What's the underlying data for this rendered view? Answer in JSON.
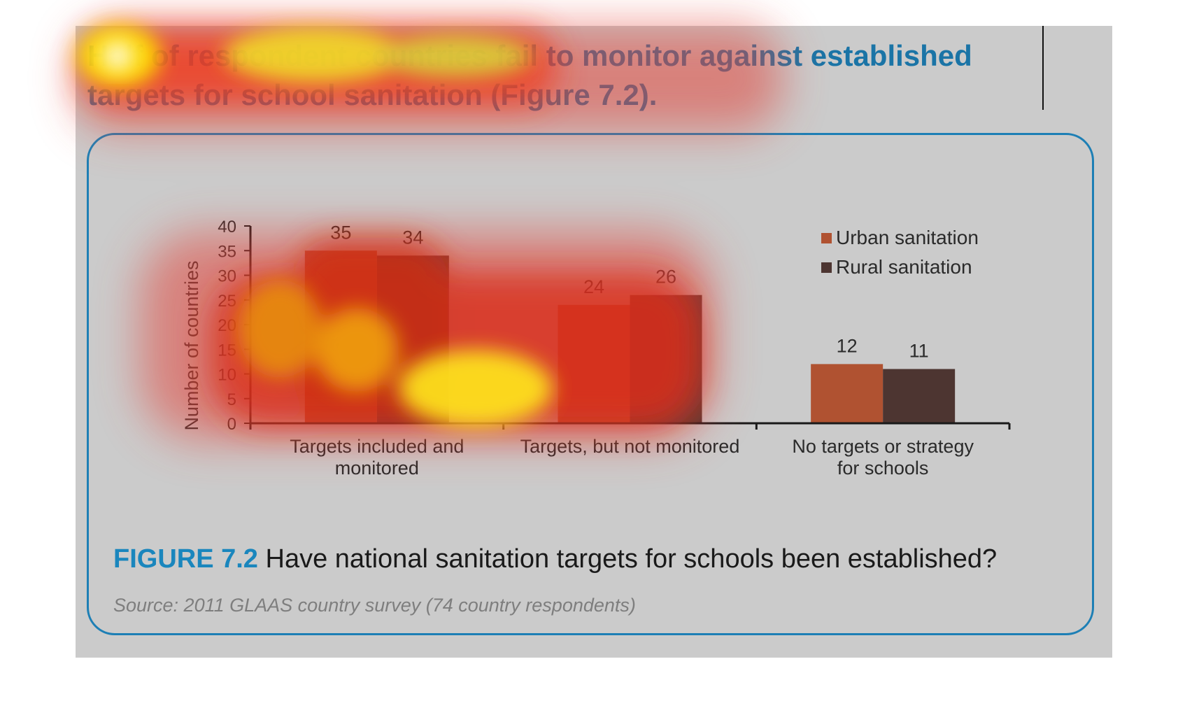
{
  "headline": "Half of respondent countries fail to monitor against established targets for school sanitation (Figure 7.2).",
  "caption": {
    "figure_label": "FIGURE 7.2",
    "text": " Have national sanitation targets for schools been established?"
  },
  "source": "Source: 2011 GLAAS country survey (74 country respondents)",
  "colors": {
    "panel": "#cbcbcb",
    "accent_blue": "#1a74a6",
    "urban": "#b05231",
    "rural": "#4d3531"
  },
  "chart_data": {
    "type": "bar",
    "categories": [
      [
        "Targets included and",
        "monitored"
      ],
      [
        "Targets, but not monitored"
      ],
      [
        "No targets or strategy",
        "for schools"
      ]
    ],
    "series": [
      {
        "name": "Urban sanitation",
        "values": [
          35,
          24,
          12
        ],
        "color": "#b05231"
      },
      {
        "name": "Rural sanitation",
        "values": [
          34,
          26,
          11
        ],
        "color": "#4d3531"
      }
    ],
    "ylabel": "Number of countries",
    "xlabel": "",
    "ylim": [
      0,
      40
    ],
    "yticks": [
      0,
      5,
      10,
      15,
      20,
      25,
      30,
      35,
      40
    ],
    "grid": false,
    "legend": "top-right",
    "data_labels": true
  }
}
